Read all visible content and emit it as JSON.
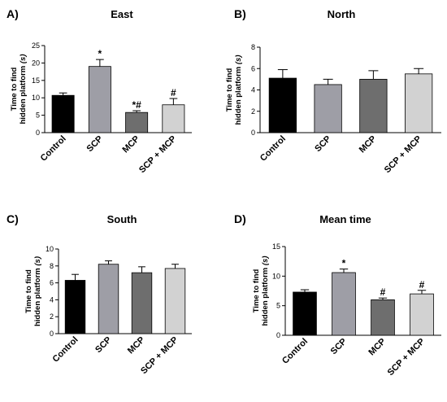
{
  "chart_data": [
    {
      "type": "bar",
      "panel": "A)",
      "title": "East",
      "ylabel": [
        "Time to find",
        "hidden platform (s)"
      ],
      "ylim": [
        0,
        25
      ],
      "yticks": [
        "0",
        "5",
        "10",
        "15",
        "20",
        "25"
      ],
      "categories": [
        "Control",
        "SCP",
        "MCP",
        "SCP + MCP"
      ],
      "values": [
        10.7,
        19.0,
        5.8,
        8.0
      ],
      "errors": [
        0.7,
        2.0,
        0.5,
        1.8
      ],
      "annotations": [
        "",
        "*",
        "*#",
        "#"
      ],
      "colors": [
        "#000000",
        "#9e9ea6",
        "#6e6e6e",
        "#d2d2d2"
      ]
    },
    {
      "type": "bar",
      "panel": "B)",
      "title": "North",
      "ylabel": [
        "Time to find",
        "hidden platform (s)"
      ],
      "ylim": [
        0,
        8
      ],
      "yticks": [
        "0",
        "2",
        "4",
        "6",
        "8"
      ],
      "categories": [
        "Control",
        "SCP",
        "MCP",
        "SCP + MCP"
      ],
      "values": [
        5.1,
        4.5,
        5.0,
        5.5
      ],
      "errors": [
        0.8,
        0.5,
        0.8,
        0.5
      ],
      "annotations": [
        "",
        "",
        "",
        ""
      ],
      "colors": [
        "#000000",
        "#9e9ea6",
        "#6e6e6e",
        "#d2d2d2"
      ]
    },
    {
      "type": "bar",
      "panel": "C)",
      "title": "South",
      "ylabel": [
        "Time to find",
        "hidden platform (s)"
      ],
      "ylim": [
        0,
        10
      ],
      "yticks": [
        "0",
        "2",
        "4",
        "6",
        "8",
        "10"
      ],
      "categories": [
        "Control",
        "SCP",
        "MCP",
        "SCP + MCP"
      ],
      "values": [
        6.3,
        8.2,
        7.2,
        7.7
      ],
      "errors": [
        0.7,
        0.4,
        0.7,
        0.5
      ],
      "annotations": [
        "",
        "",
        "",
        ""
      ],
      "colors": [
        "#000000",
        "#9e9ea6",
        "#6e6e6e",
        "#d2d2d2"
      ]
    },
    {
      "type": "bar",
      "panel": "D)",
      "title": "Mean time",
      "ylabel": [
        "Time to find",
        "hidden platform (s)"
      ],
      "ylim": [
        0,
        15
      ],
      "yticks": [
        "0",
        "5",
        "10",
        "15"
      ],
      "categories": [
        "Control",
        "SCP",
        "MCP",
        "SCP + MCP"
      ],
      "values": [
        7.3,
        10.6,
        6.0,
        7.0
      ],
      "errors": [
        0.4,
        0.6,
        0.3,
        0.6
      ],
      "annotations": [
        "",
        "*",
        "#",
        "#"
      ],
      "colors": [
        "#000000",
        "#9e9ea6",
        "#6e6e6e",
        "#d2d2d2"
      ]
    }
  ]
}
